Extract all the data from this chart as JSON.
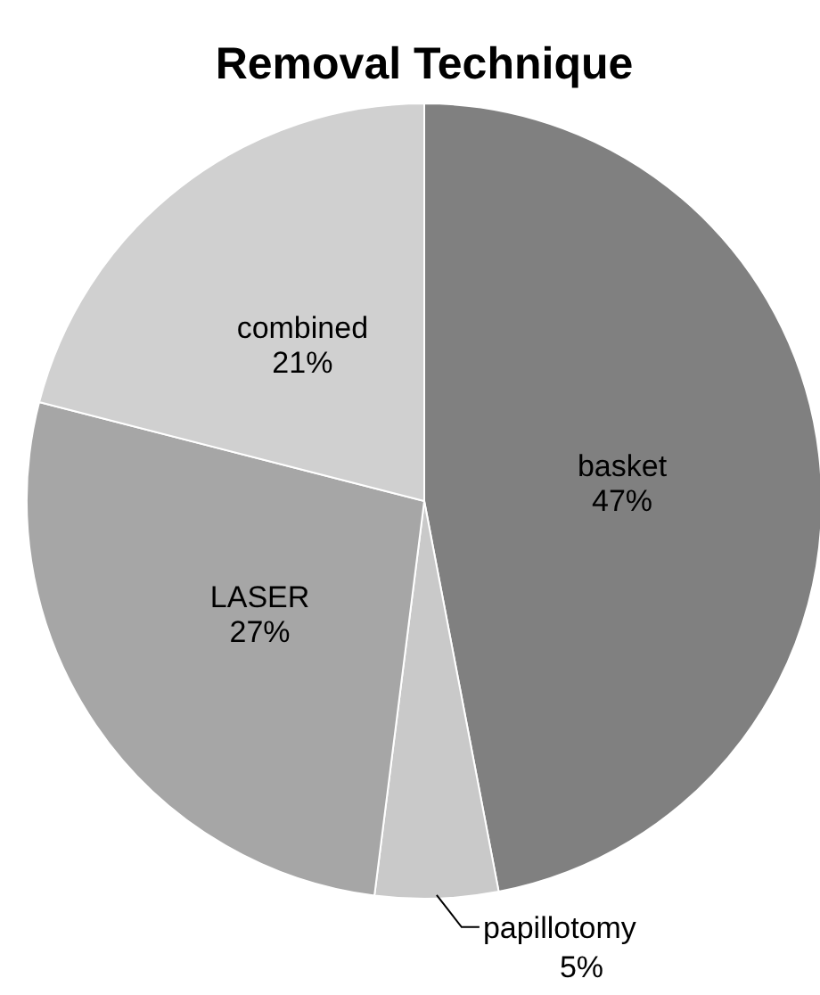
{
  "chart_data": {
    "type": "pie",
    "title": "Removal Technique",
    "categories": [
      "basket",
      "papillotomy",
      "LASER",
      "combined"
    ],
    "values": [
      47,
      5,
      27,
      21
    ],
    "colors": [
      "#808080",
      "#c9c9c9",
      "#a6a6a6",
      "#d0d0d0"
    ],
    "value_labels": [
      "47%",
      "5%",
      "27%",
      "21%"
    ]
  }
}
